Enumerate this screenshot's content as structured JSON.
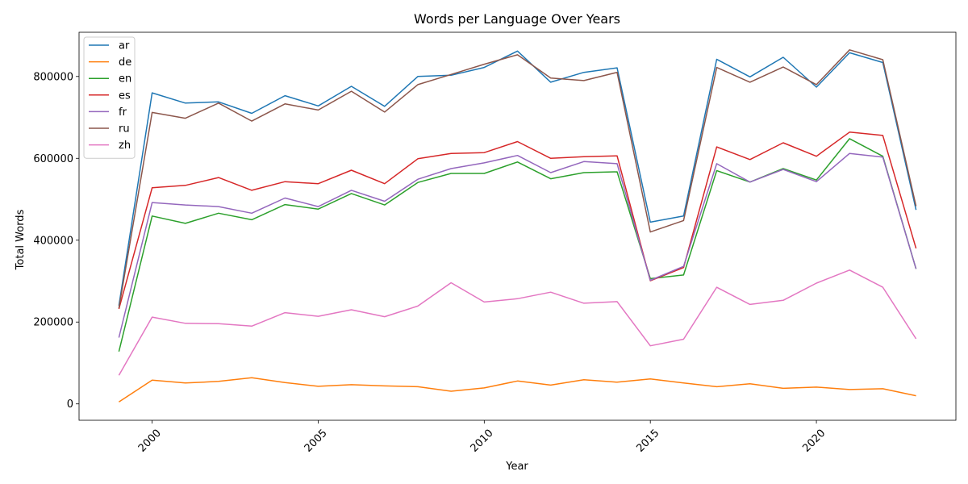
{
  "chart_data": {
    "type": "line",
    "title": "Words per Language Over Years",
    "xlabel": "Year",
    "ylabel": "Total Words",
    "x": [
      1999,
      2000,
      2001,
      2002,
      2003,
      2004,
      2005,
      2006,
      2007,
      2008,
      2009,
      2010,
      2011,
      2012,
      2013,
      2014,
      2015,
      2016,
      2017,
      2018,
      2019,
      2020,
      2021,
      2022,
      2023
    ],
    "xlim": [
      1997.8,
      2024.2
    ],
    "ylim": [
      -40000,
      908000
    ],
    "xticks": [
      2000,
      2005,
      2010,
      2015,
      2020
    ],
    "xtick_labels": [
      "2000",
      "2005",
      "2010",
      "2015",
      "2020"
    ],
    "yticks": [
      0,
      200000,
      400000,
      600000,
      800000
    ],
    "ytick_labels": [
      "0",
      "200000",
      "400000",
      "600000",
      "800000"
    ],
    "xtick_rotation": 45,
    "grid": false,
    "legend_position": "top-left",
    "series": [
      {
        "name": "ar",
        "color": "#1f77b4",
        "values": [
          240000,
          760000,
          735000,
          738000,
          710000,
          753000,
          728000,
          776000,
          727000,
          800000,
          803000,
          822000,
          862000,
          786000,
          810000,
          821000,
          444000,
          459000,
          842000,
          799000,
          847000,
          774000,
          858000,
          834000,
          474000
        ]
      },
      {
        "name": "de",
        "color": "#ff7f0e",
        "values": [
          5000,
          58000,
          51000,
          55000,
          64000,
          52000,
          43000,
          47000,
          44000,
          42000,
          31000,
          39000,
          56000,
          46000,
          59000,
          53000,
          61000,
          51000,
          42000,
          49000,
          38000,
          41000,
          35000,
          37000,
          20000
        ]
      },
      {
        "name": "en",
        "color": "#2ca02c",
        "values": [
          128000,
          459000,
          441000,
          466000,
          450000,
          487000,
          476000,
          514000,
          486000,
          541000,
          563000,
          563000,
          591000,
          550000,
          565000,
          567000,
          306000,
          315000,
          570000,
          542000,
          575000,
          547000,
          648000,
          605000,
          330000
        ]
      },
      {
        "name": "es",
        "color": "#d62728",
        "values": [
          232000,
          528000,
          534000,
          553000,
          522000,
          543000,
          538000,
          571000,
          538000,
          599000,
          612000,
          614000,
          641000,
          600000,
          604000,
          606000,
          301000,
          333000,
          628000,
          597000,
          638000,
          605000,
          664000,
          656000,
          380000
        ]
      },
      {
        "name": "fr",
        "color": "#9467bd",
        "values": [
          162000,
          492000,
          486000,
          482000,
          466000,
          503000,
          482000,
          522000,
          495000,
          549000,
          575000,
          589000,
          607000,
          565000,
          592000,
          587000,
          302000,
          336000,
          587000,
          542000,
          573000,
          543000,
          612000,
          603000,
          330000
        ]
      },
      {
        "name": "ru",
        "color": "#8c564b",
        "values": [
          234000,
          712000,
          698000,
          735000,
          691000,
          733000,
          718000,
          764000,
          713000,
          780000,
          805000,
          830000,
          853000,
          796000,
          790000,
          810000,
          420000,
          448000,
          822000,
          786000,
          823000,
          780000,
          865000,
          841000,
          483000
        ]
      },
      {
        "name": "zh",
        "color": "#e377c2",
        "values": [
          70000,
          212000,
          197000,
          196000,
          190000,
          223000,
          214000,
          230000,
          213000,
          239000,
          296000,
          249000,
          257000,
          273000,
          246000,
          250000,
          142000,
          158000,
          285000,
          243000,
          253000,
          295000,
          327000,
          285000,
          159000
        ]
      }
    ]
  }
}
